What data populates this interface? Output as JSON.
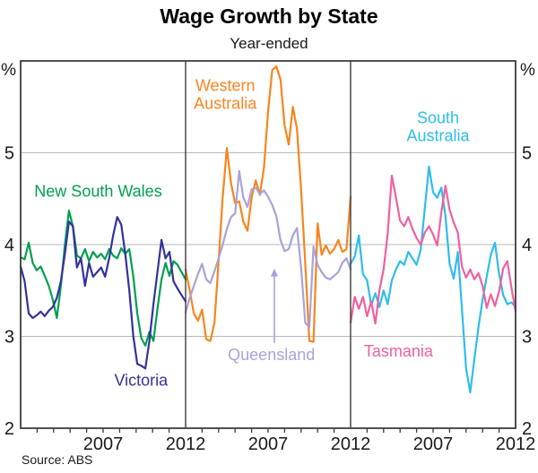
{
  "chart_data": {
    "type": "line",
    "title": "Wage Growth by State",
    "subtitle": "Year-ended",
    "source": "Source: ABS",
    "unit": "%",
    "ylim": [
      2,
      6
    ],
    "yticks": [
      5,
      4,
      3,
      2
    ],
    "gridlines": [
      3,
      4,
      5
    ],
    "x_start_year": 2002,
    "x_end_year": 2012,
    "frequency": "quarterly",
    "legend_position": "inline-labels",
    "grid": "horizontal-only",
    "colors": {
      "frame": "#3d3d3d",
      "grid": "#b9b9b9",
      "text": "#1a1a1a"
    },
    "xticks": [
      {
        "label": "2007",
        "frac": 0.5
      },
      {
        "label": "2012",
        "frac": 1.0
      }
    ],
    "panels": [
      {
        "name": "nsw-vic",
        "series": [
          {
            "name": "New South Wales",
            "color": "#00a04e",
            "label": {
              "lines": [
                "New South Wales"
              ],
              "frac": 0.47,
              "val": 4.58
            },
            "values": [
              3.86,
              3.84,
              4.02,
              3.8,
              3.72,
              3.76,
              3.66,
              3.55,
              3.4,
              3.2,
              3.55,
              4.0,
              4.37,
              4.2,
              3.88,
              3.85,
              3.95,
              3.82,
              3.92,
              3.86,
              3.9,
              3.84,
              3.95,
              3.88,
              3.85,
              3.96,
              3.9,
              3.95,
              3.65,
              3.25,
              2.98,
              2.9,
              3.05,
              2.95,
              3.3,
              3.62,
              3.8,
              3.66,
              3.82,
              3.78,
              3.7,
              3.62
            ]
          },
          {
            "name": "Victoria",
            "color": "#32329e",
            "label": {
              "lines": [
                "Victoria"
              ],
              "frac": 0.73,
              "val": 2.52
            },
            "values": [
              3.76,
              3.6,
              3.25,
              3.2,
              3.23,
              3.27,
              3.22,
              3.28,
              3.32,
              3.42,
              3.6,
              3.9,
              4.25,
              4.2,
              3.75,
              3.85,
              3.55,
              3.8,
              3.65,
              3.7,
              3.75,
              3.65,
              3.85,
              4.1,
              4.3,
              4.22,
              3.9,
              3.5,
              3.0,
              2.7,
              2.68,
              2.65,
              2.95,
              3.35,
              3.7,
              4.05,
              3.85,
              3.92,
              3.6,
              3.52,
              3.45,
              3.38
            ]
          }
        ]
      },
      {
        "name": "wa-qld",
        "series": [
          {
            "name": "Western Australia",
            "color": "#f6851f",
            "label": {
              "lines": [
                "Western",
                "Australia"
              ],
              "frac": 0.24,
              "val": 5.73
            },
            "values": [
              3.73,
              3.5,
              3.25,
              3.17,
              3.29,
              2.97,
              2.95,
              3.15,
              3.82,
              4.52,
              5.05,
              4.67,
              4.45,
              4.47,
              4.25,
              4.15,
              4.51,
              4.7,
              4.54,
              4.84,
              5.45,
              5.9,
              5.94,
              5.8,
              5.3,
              5.09,
              5.5,
              5.26,
              4.6,
              3.8,
              2.95,
              2.94,
              4.23,
              3.89,
              3.99,
              3.9,
              3.95,
              4.05,
              3.92,
              3.95,
              4.52
            ]
          },
          {
            "name": "Queensland",
            "color": "#a8a3d9",
            "label": {
              "lines": [
                "Queensland"
              ],
              "frac": 0.52,
              "val": 2.8
            },
            "values": [
              3.26,
              3.42,
              3.55,
              3.68,
              3.79,
              3.62,
              3.58,
              3.71,
              3.85,
              4.0,
              4.17,
              4.3,
              4.34,
              4.8,
              4.51,
              4.41,
              4.6,
              4.62,
              4.55,
              4.59,
              4.52,
              4.43,
              4.31,
              4.05,
              3.93,
              3.95,
              4.1,
              4.18,
              3.75,
              3.15,
              3.1,
              3.98,
              3.78,
              3.7,
              3.64,
              3.62,
              3.66,
              3.7,
              3.8,
              3.85,
              3.73
            ]
          }
        ],
        "annotation": {
          "type": "arrow-up",
          "color": "#a8a3d9",
          "frac": 0.538,
          "from_val": 2.93,
          "to_val": 3.74
        }
      },
      {
        "name": "sa-tas",
        "series": [
          {
            "name": "South Australia",
            "color": "#2ebdec",
            "label": {
              "lines": [
                "South",
                "Australia"
              ],
              "frac": 0.53,
              "val": 5.38
            },
            "values": [
              3.79,
              3.87,
              4.1,
              3.68,
              3.61,
              3.34,
              3.47,
              3.32,
              3.5,
              3.35,
              3.61,
              3.73,
              3.82,
              3.78,
              3.92,
              3.85,
              3.78,
              3.94,
              4.4,
              4.85,
              4.57,
              4.51,
              4.62,
              4.31,
              3.79,
              3.63,
              3.92,
              3.3,
              2.65,
              2.39,
              2.75,
              3.1,
              3.4,
              3.65,
              3.89,
              4.02,
              3.68,
              3.45,
              3.35,
              3.37,
              3.32
            ]
          },
          {
            "name": "Tasmania",
            "color": "#f0609e",
            "label": {
              "lines": [
                "Tasmania"
              ],
              "frac": 0.29,
              "val": 2.84
            },
            "values": [
              3.15,
              3.43,
              3.3,
              3.43,
              3.22,
              3.38,
              3.14,
              3.5,
              3.73,
              4.12,
              4.75,
              4.51,
              4.26,
              4.2,
              4.3,
              4.17,
              4.07,
              4.0,
              4.13,
              4.2,
              4.11,
              3.99,
              4.35,
              4.64,
              4.38,
              4.24,
              4.13,
              3.76,
              3.64,
              3.73,
              3.62,
              3.69,
              3.55,
              3.31,
              3.46,
              3.33,
              3.49,
              3.74,
              3.82,
              3.53,
              3.27
            ]
          }
        ]
      }
    ]
  }
}
